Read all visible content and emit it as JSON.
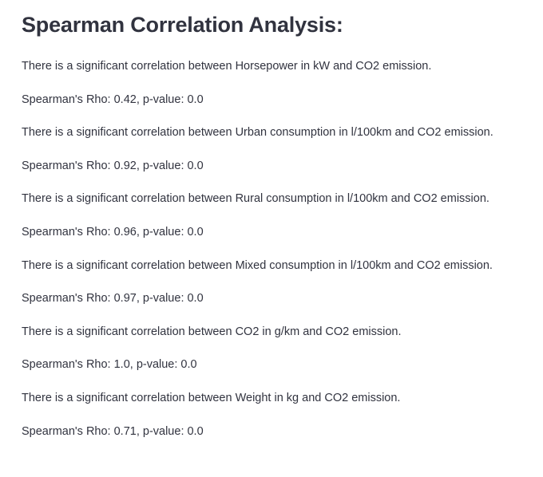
{
  "section": {
    "title": "Spearman Correlation Analysis:"
  },
  "results": [
    {
      "statement": "There is a significant correlation between Horsepower in kW and CO2 emission.",
      "stats": "Spearman's Rho: 0.42, p-value: 0.0"
    },
    {
      "statement": "There is a significant correlation between Urban consumption in l/100km and CO2 emission.",
      "stats": "Spearman's Rho: 0.92, p-value: 0.0"
    },
    {
      "statement": "There is a significant correlation between Rural consumption in l/100km and CO2 emission.",
      "stats": "Spearman's Rho: 0.96, p-value: 0.0"
    },
    {
      "statement": "There is a significant correlation between Mixed consumption in l/100km and CO2 emission.",
      "stats": "Spearman's Rho: 0.97, p-value: 0.0"
    },
    {
      "statement": "There is a significant correlation between CO2 in g/km and CO2 emission.",
      "stats": "Spearman's Rho: 1.0, p-value: 0.0"
    },
    {
      "statement": "There is a significant correlation between Weight in kg and CO2 emission.",
      "stats": "Spearman's Rho: 0.71, p-value: 0.0"
    }
  ]
}
